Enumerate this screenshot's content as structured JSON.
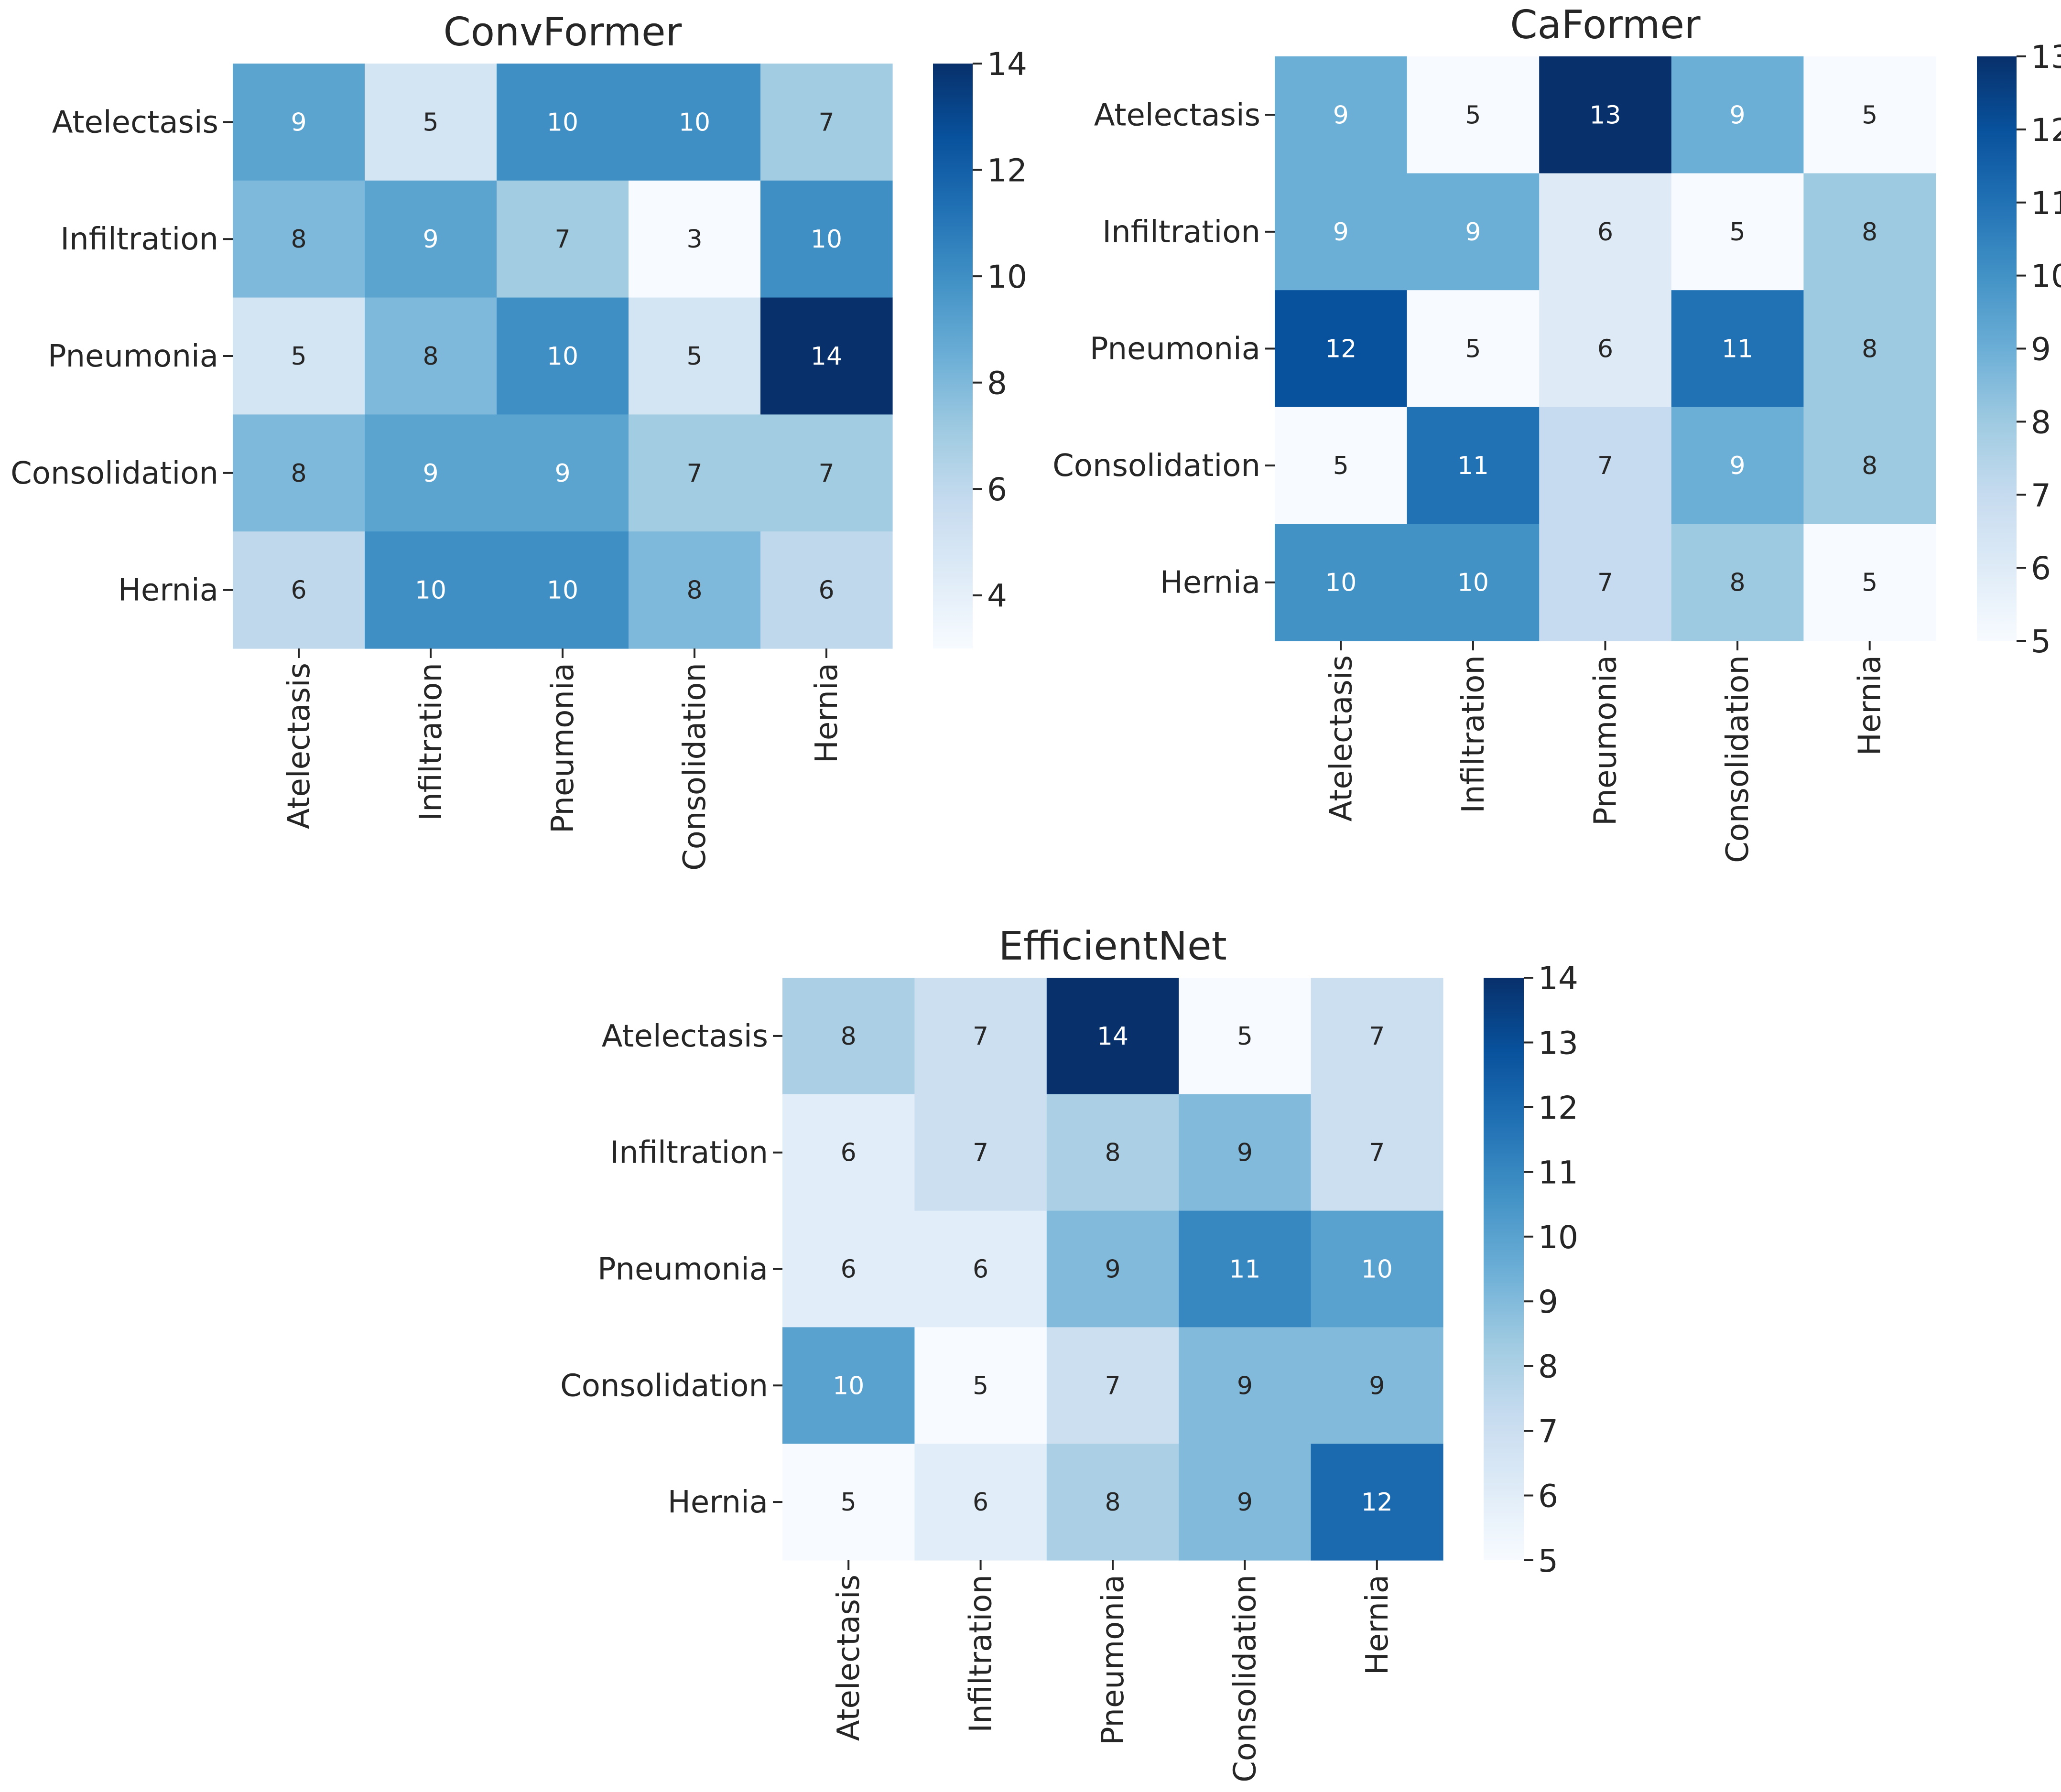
{
  "chart_data": [
    {
      "type": "heatmap",
      "title": "ConvFormer",
      "rows": [
        "Atelectasis",
        "Infiltration",
        "Pneumonia",
        "Consolidation",
        "Hernia"
      ],
      "columns": [
        "Atelectasis",
        "Infiltration",
        "Pneumonia",
        "Consolidation",
        "Hernia"
      ],
      "values": [
        [
          9,
          5,
          10,
          10,
          7
        ],
        [
          8,
          9,
          7,
          3,
          10
        ],
        [
          5,
          8,
          10,
          5,
          14
        ],
        [
          8,
          9,
          9,
          7,
          7
        ],
        [
          6,
          10,
          10,
          8,
          6
        ]
      ],
      "colormap": "Blues",
      "vmin": 3,
      "vmax": 14,
      "colorbar_ticks": [
        "4",
        "6",
        "8",
        "10",
        "12",
        "14"
      ],
      "colorbar_tick_values": [
        4,
        6,
        8,
        10,
        12,
        14
      ]
    },
    {
      "type": "heatmap",
      "title": "CaFormer",
      "rows": [
        "Atelectasis",
        "Infiltration",
        "Pneumonia",
        "Consolidation",
        "Hernia"
      ],
      "columns": [
        "Atelectasis",
        "Infiltration",
        "Pneumonia",
        "Consolidation",
        "Hernia"
      ],
      "values": [
        [
          9,
          5,
          13,
          9,
          5
        ],
        [
          9,
          9,
          6,
          5,
          8
        ],
        [
          12,
          5,
          6,
          11,
          8
        ],
        [
          5,
          11,
          7,
          9,
          8
        ],
        [
          10,
          10,
          7,
          8,
          5
        ]
      ],
      "colormap": "Blues",
      "vmin": 5,
      "vmax": 13,
      "colorbar_ticks": [
        "5",
        "6",
        "7",
        "8",
        "9",
        "10",
        "11",
        "12",
        "13"
      ],
      "colorbar_tick_values": [
        5,
        6,
        7,
        8,
        9,
        10,
        11,
        12,
        13
      ]
    },
    {
      "type": "heatmap",
      "title": "EfficientNet",
      "rows": [
        "Atelectasis",
        "Infiltration",
        "Pneumonia",
        "Consolidation",
        "Hernia"
      ],
      "columns": [
        "Atelectasis",
        "Infiltration",
        "Pneumonia",
        "Consolidation",
        "Hernia"
      ],
      "values": [
        [
          8,
          7,
          14,
          5,
          7
        ],
        [
          6,
          7,
          8,
          9,
          7
        ],
        [
          6,
          6,
          9,
          11,
          10
        ],
        [
          10,
          5,
          7,
          9,
          9
        ],
        [
          5,
          6,
          8,
          9,
          12
        ]
      ],
      "colormap": "Blues",
      "vmin": 5,
      "vmax": 14,
      "colorbar_ticks": [
        "5",
        "6",
        "7",
        "8",
        "9",
        "10",
        "11",
        "12",
        "13",
        "14"
      ],
      "colorbar_tick_values": [
        5,
        6,
        7,
        8,
        9,
        10,
        11,
        12,
        13,
        14
      ]
    }
  ]
}
